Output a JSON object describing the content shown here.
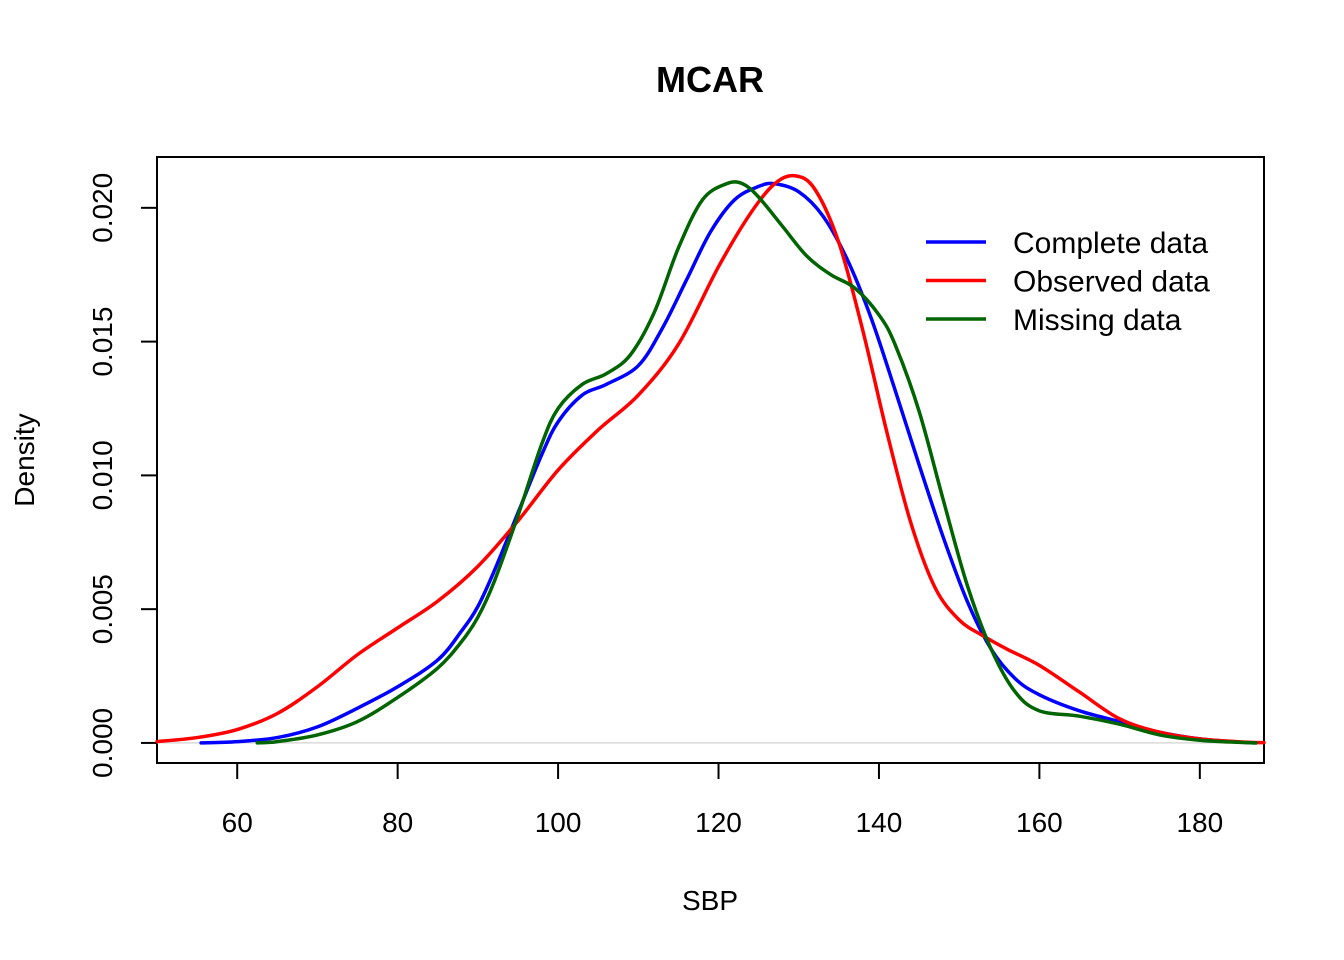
{
  "chart_data": {
    "type": "line",
    "title": "MCAR",
    "xlabel": "SBP",
    "ylabel": "Density",
    "xlim": [
      50,
      188
    ],
    "ylim": [
      -0.00075,
      0.0219
    ],
    "x_ticks": [
      60,
      80,
      100,
      120,
      140,
      160,
      180
    ],
    "x_tick_labels": [
      "60",
      "80",
      "100",
      "120",
      "140",
      "160",
      "180"
    ],
    "y_ticks": [
      0,
      0.005,
      0.01,
      0.015,
      0.02
    ],
    "y_tick_labels": [
      "0.000",
      "0.005",
      "0.010",
      "0.015",
      "0.020"
    ],
    "zero_line": true,
    "grid": false,
    "legend_position": "top-right",
    "series": [
      {
        "name": "Complete data",
        "color": "#0000ff",
        "points": [
          [
            55.5,
            0.0
          ],
          [
            60,
            5e-05
          ],
          [
            65,
            0.0002
          ],
          [
            70,
            0.0006
          ],
          [
            75,
            0.0013
          ],
          [
            80,
            0.0021
          ],
          [
            85,
            0.0031
          ],
          [
            88,
            0.0042
          ],
          [
            90,
            0.0051
          ],
          [
            92,
            0.0064
          ],
          [
            95,
            0.0086
          ],
          [
            98,
            0.0108
          ],
          [
            100,
            0.012
          ],
          [
            103,
            0.013
          ],
          [
            106,
            0.0134
          ],
          [
            110,
            0.0141
          ],
          [
            113,
            0.0155
          ],
          [
            116,
            0.0173
          ],
          [
            119,
            0.0191
          ],
          [
            122,
            0.0203
          ],
          [
            125,
            0.0208
          ],
          [
            127,
            0.0209
          ],
          [
            130,
            0.0206
          ],
          [
            133,
            0.0197
          ],
          [
            136,
            0.0181
          ],
          [
            139,
            0.0159
          ],
          [
            142,
            0.0132
          ],
          [
            145,
            0.0104
          ],
          [
            148,
            0.0077
          ],
          [
            151,
            0.0053
          ],
          [
            154,
            0.0035
          ],
          [
            157,
            0.0024
          ],
          [
            160,
            0.0018
          ],
          [
            165,
            0.0012
          ],
          [
            170,
            0.0008
          ],
          [
            175,
            0.0004
          ],
          [
            180,
            0.00015
          ],
          [
            185,
            3e-05
          ],
          [
            187,
            0.0
          ]
        ]
      },
      {
        "name": "Observed data",
        "color": "#ff0000",
        "points": [
          [
            50,
            5e-05
          ],
          [
            55,
            0.0002
          ],
          [
            60,
            0.0005
          ],
          [
            65,
            0.0011
          ],
          [
            70,
            0.0021
          ],
          [
            75,
            0.0033
          ],
          [
            80,
            0.0043
          ],
          [
            85,
            0.0053
          ],
          [
            90,
            0.0066
          ],
          [
            95,
            0.0083
          ],
          [
            100,
            0.0102
          ],
          [
            105,
            0.0117
          ],
          [
            110,
            0.013
          ],
          [
            115,
            0.0149
          ],
          [
            120,
            0.0178
          ],
          [
            124,
            0.0198
          ],
          [
            127,
            0.0209
          ],
          [
            129.5,
            0.0212
          ],
          [
            132,
            0.0207
          ],
          [
            135,
            0.0187
          ],
          [
            138,
            0.0154
          ],
          [
            141,
            0.0116
          ],
          [
            144,
            0.0082
          ],
          [
            147,
            0.0058
          ],
          [
            150,
            0.0046
          ],
          [
            153,
            0.004
          ],
          [
            156,
            0.0035
          ],
          [
            160,
            0.0029
          ],
          [
            165,
            0.0019
          ],
          [
            170,
            0.0009
          ],
          [
            175,
            0.0004
          ],
          [
            180,
            0.00015
          ],
          [
            185,
            4e-05
          ],
          [
            188,
            1e-05
          ]
        ]
      },
      {
        "name": "Missing data",
        "color": "#006400",
        "points": [
          [
            62.5,
            0.0
          ],
          [
            65,
            5e-05
          ],
          [
            70,
            0.0003
          ],
          [
            75,
            0.0008
          ],
          [
            80,
            0.0017
          ],
          [
            85,
            0.0028
          ],
          [
            88,
            0.0038
          ],
          [
            90,
            0.0047
          ],
          [
            92,
            0.006
          ],
          [
            95,
            0.0085
          ],
          [
            98,
            0.0112
          ],
          [
            100,
            0.0125
          ],
          [
            103,
            0.0134
          ],
          [
            106,
            0.0138
          ],
          [
            109,
            0.0145
          ],
          [
            112,
            0.0161
          ],
          [
            115,
            0.0185
          ],
          [
            118,
            0.0203
          ],
          [
            121,
            0.0209
          ],
          [
            123,
            0.0209
          ],
          [
            125,
            0.0204
          ],
          [
            128,
            0.0193
          ],
          [
            131,
            0.0182
          ],
          [
            134,
            0.0175
          ],
          [
            137,
            0.017
          ],
          [
            140,
            0.016
          ],
          [
            142,
            0.0149
          ],
          [
            145,
            0.0124
          ],
          [
            148,
            0.0091
          ],
          [
            151,
            0.0059
          ],
          [
            154,
            0.0035
          ],
          [
            157,
            0.0019
          ],
          [
            160,
            0.0012
          ],
          [
            165,
            0.001
          ],
          [
            170,
            0.0007
          ],
          [
            175,
            0.0003
          ],
          [
            180,
            0.0001
          ],
          [
            185,
            2e-05
          ],
          [
            187,
            0.0
          ]
        ]
      }
    ]
  }
}
